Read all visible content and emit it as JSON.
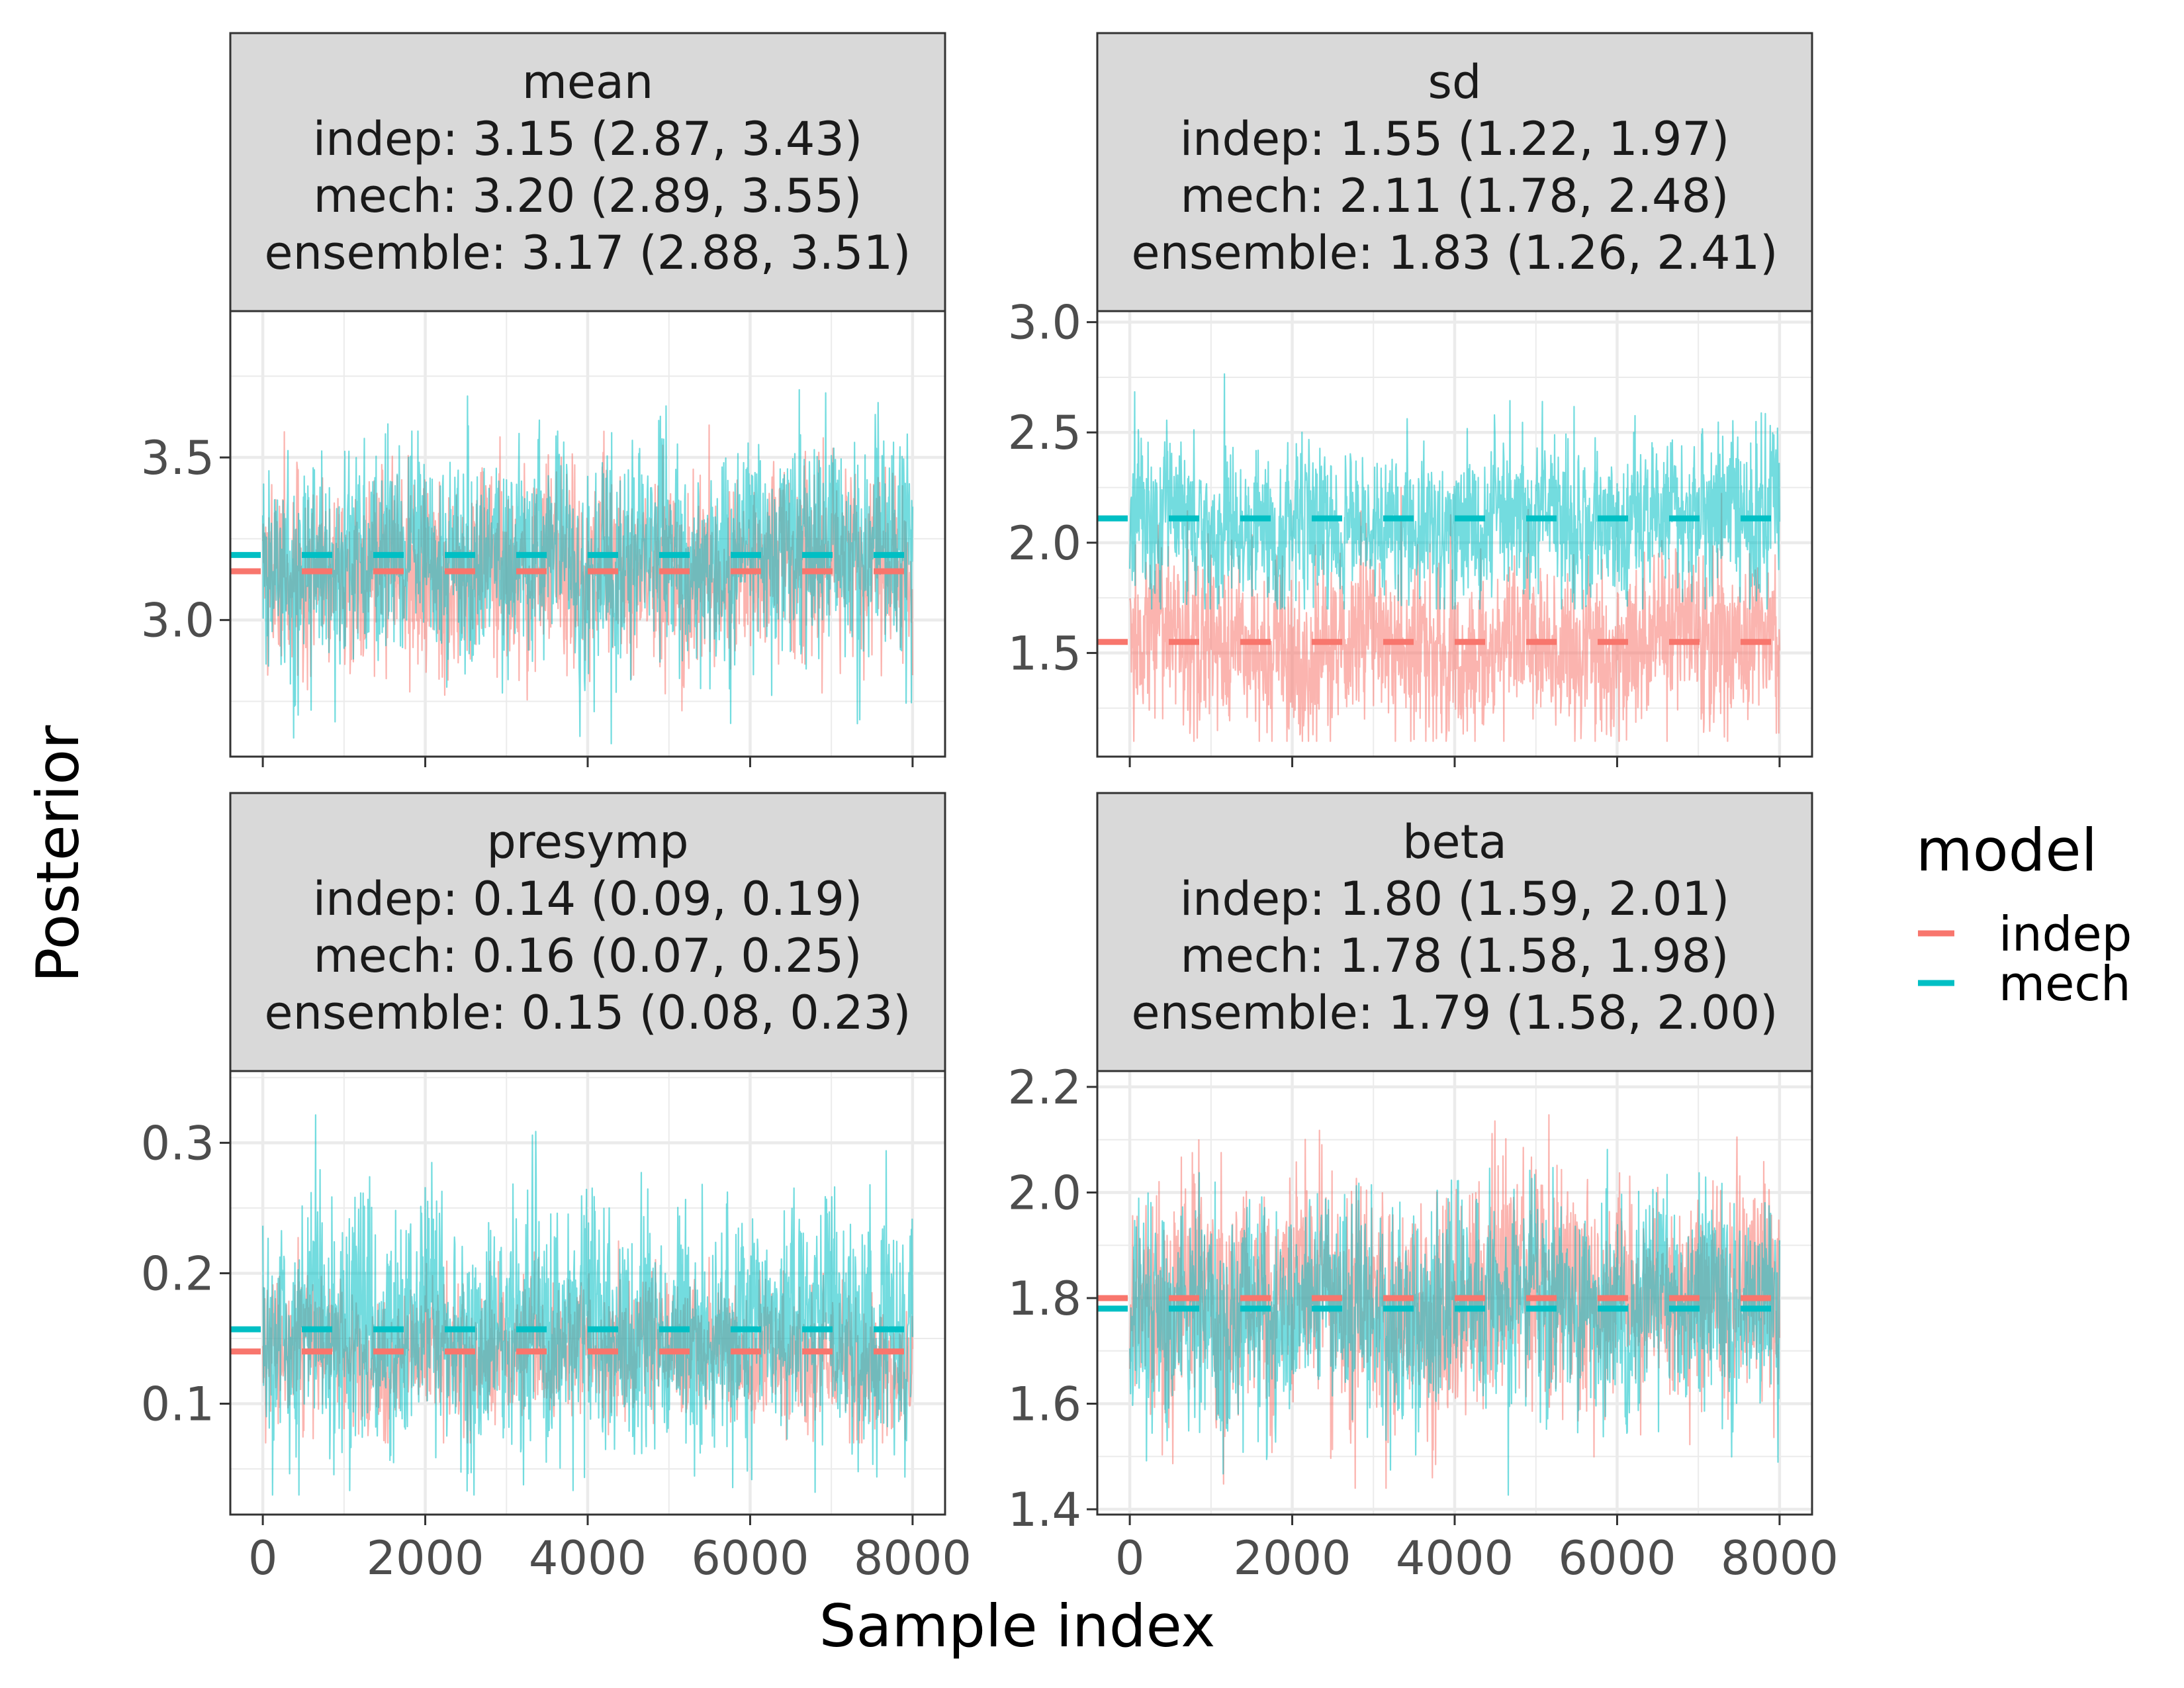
{
  "chart_data": {
    "type": "line",
    "xlabel": "Sample index",
    "ylabel": "Posterior",
    "legend": {
      "title": "model",
      "position": "right",
      "items": [
        {
          "label": "indep",
          "color": "#F8766D"
        },
        {
          "label": "mech",
          "color": "#00BFC4"
        }
      ]
    },
    "x_ticks": [
      "0",
      "2000",
      "4000",
      "6000",
      "8000"
    ],
    "x_tick_values": [
      0,
      2000,
      4000,
      6000,
      8000
    ],
    "xlim": [
      -400,
      8400
    ],
    "grid": true,
    "n_samples": 8000,
    "panels": [
      {
        "strip": [
          "mean",
          "indep: 3.15 (2.87, 3.43)",
          "mech: 3.20 (2.89, 3.55)",
          "ensemble: 3.17 (2.88, 3.51)"
        ],
        "ylim": [
          2.58,
          3.95
        ],
        "y_ticks": [
          "3.0",
          "3.5"
        ],
        "y_tick_values": [
          3.0,
          3.5
        ],
        "series": [
          {
            "name": "indep",
            "color": "#F8766D",
            "posterior_mean": 3.15,
            "ci": [
              2.87,
              3.43
            ],
            "trace_range": [
              2.7,
              3.78
            ]
          },
          {
            "name": "mech",
            "color": "#00BFC4",
            "posterior_mean": 3.2,
            "ci": [
              2.89,
              3.55
            ],
            "trace_range": [
              2.62,
              3.92
            ]
          }
        ]
      },
      {
        "strip": [
          "sd",
          "indep: 1.55 (1.22, 1.97)",
          "mech: 2.11 (1.78, 2.48)",
          "ensemble: 1.83 (1.26, 2.41)"
        ],
        "ylim": [
          1.03,
          3.05
        ],
        "y_ticks": [
          "1.5",
          "2.0",
          "2.5",
          "3.0"
        ],
        "y_tick_values": [
          1.5,
          2.0,
          2.5,
          3.0
        ],
        "series": [
          {
            "name": "indep",
            "color": "#F8766D",
            "posterior_mean": 1.55,
            "ci": [
              1.22,
              1.97
            ],
            "trace_range": [
              1.1,
              2.25
            ]
          },
          {
            "name": "mech",
            "color": "#00BFC4",
            "posterior_mean": 2.11,
            "ci": [
              1.78,
              2.48
            ],
            "trace_range": [
              1.7,
              2.92
            ]
          }
        ]
      },
      {
        "strip": [
          "presymp",
          "indep: 0.14 (0.09, 0.19)",
          "mech: 0.16 (0.07, 0.25)",
          "ensemble: 0.15 (0.08, 0.23)"
        ],
        "ylim": [
          0.015,
          0.355
        ],
        "y_ticks": [
          "0.1",
          "0.2",
          "0.3"
        ],
        "y_tick_values": [
          0.1,
          0.2,
          0.3
        ],
        "series": [
          {
            "name": "indep",
            "color": "#F8766D",
            "posterior_mean": 0.14,
            "ci": [
              0.09,
              0.19
            ],
            "trace_range": [
              0.07,
              0.23
            ]
          },
          {
            "name": "mech",
            "color": "#00BFC4",
            "posterior_mean": 0.157,
            "ci": [
              0.07,
              0.25
            ],
            "trace_range": [
              0.03,
              0.34
            ]
          }
        ]
      },
      {
        "strip": [
          "beta",
          "indep: 1.80 (1.59, 2.01)",
          "mech: 1.78 (1.58, 1.98)",
          "ensemble: 1.79 (1.58, 2.00)"
        ],
        "ylim": [
          1.39,
          2.23
        ],
        "y_ticks": [
          "1.4",
          "1.6",
          "1.8",
          "2.0",
          "2.2"
        ],
        "y_tick_values": [
          1.4,
          1.6,
          1.8,
          2.0,
          2.2
        ],
        "series": [
          {
            "name": "indep",
            "color": "#F8766D",
            "posterior_mean": 1.8,
            "ci": [
              1.59,
              2.01
            ],
            "trace_range": [
              1.44,
              2.17
            ]
          },
          {
            "name": "mech",
            "color": "#00BFC4",
            "posterior_mean": 1.78,
            "ci": [
              1.58,
              1.98
            ],
            "trace_range": [
              1.42,
              2.18
            ]
          }
        ]
      }
    ]
  }
}
